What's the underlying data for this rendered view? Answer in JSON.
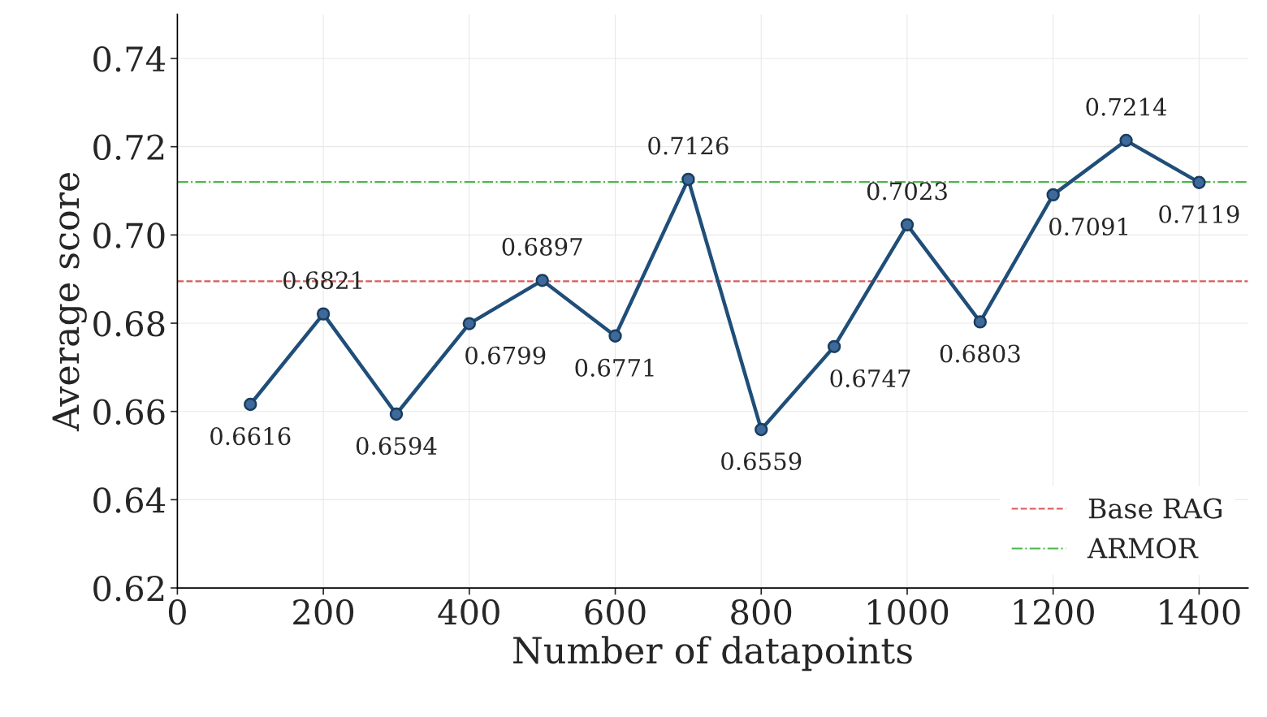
{
  "chart_data": {
    "type": "line",
    "xlabel": "Number of datapoints",
    "ylabel": "Average score",
    "x": [
      100,
      200,
      300,
      400,
      500,
      600,
      700,
      800,
      900,
      1000,
      1100,
      1200,
      1300,
      1400
    ],
    "series": [
      {
        "color": "#1f4e79",
        "values": [
          0.6616,
          0.6821,
          0.6594,
          0.6799,
          0.6897,
          0.6771,
          0.7126,
          0.6559,
          0.6747,
          0.7023,
          0.6803,
          0.7091,
          0.7214,
          0.7119
        ]
      }
    ],
    "data_labels": true,
    "marker": "circle",
    "line_style": "solid",
    "ref_lines": [
      {
        "axis": "y",
        "value": 0.6895,
        "label": "Base RAG",
        "color": "#d9595a",
        "line_style": "dashed"
      },
      {
        "axis": "y",
        "value": 0.712,
        "label": "ARMOR",
        "color": "#4cb84c",
        "line_style": "dashdot"
      }
    ],
    "xlim": [
      0,
      1467
    ],
    "ylim": [
      0.62,
      0.75
    ],
    "xticks": [
      0,
      200,
      400,
      600,
      800,
      1000,
      1200,
      1400
    ],
    "yticks": [
      0.62,
      0.64,
      0.66,
      0.68,
      {
        "value": 0.7,
        "label": "0.70"
      },
      0.72,
      0.74
    ],
    "grid": true,
    "legend": "bottom right"
  }
}
